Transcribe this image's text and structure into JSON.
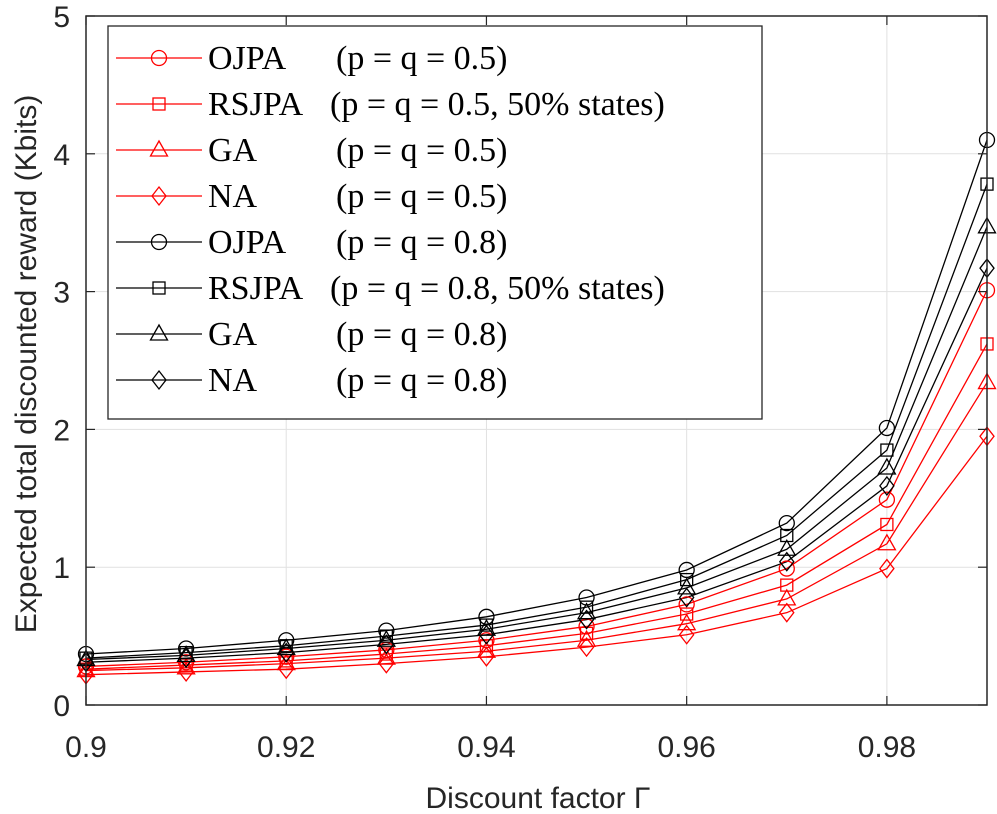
{
  "chart_data": {
    "type": "line",
    "title": "",
    "xlabel": "Discount factor Γ",
    "ylabel": "Expected total discounted reward (Kbits)",
    "xlim": [
      0.9,
      0.99
    ],
    "ylim": [
      0,
      5
    ],
    "grid": true,
    "legend_position": "top-left",
    "x": [
      0.9,
      0.91,
      0.92,
      0.93,
      0.94,
      0.95,
      0.96,
      0.97,
      0.98,
      0.99
    ],
    "x_tick_labels": [
      "0.9",
      "0.92",
      "0.94",
      "0.96",
      "0.98"
    ],
    "x_ticks": [
      0.9,
      0.92,
      0.94,
      0.96,
      0.98
    ],
    "y_tick_labels": [
      "0",
      "1",
      "2",
      "3",
      "4",
      "5"
    ],
    "y_ticks": [
      0,
      1,
      2,
      3,
      4,
      5
    ],
    "series": [
      {
        "name": "OJPA",
        "condition": "(p = q = 0.5)",
        "color": "#ff0000",
        "marker": "circle",
        "values": [
          0.28,
          0.31,
          0.35,
          0.4,
          0.47,
          0.57,
          0.73,
          0.99,
          1.49,
          3.01
        ]
      },
      {
        "name": "RSJPA",
        "condition": "(p = q = 0.5, 50% states)",
        "color": "#ff0000",
        "marker": "square",
        "values": [
          0.26,
          0.29,
          0.32,
          0.37,
          0.43,
          0.52,
          0.66,
          0.87,
          1.31,
          2.62
        ]
      },
      {
        "name": "GA",
        "condition": "(p = q = 0.5)",
        "color": "#ff0000",
        "marker": "triangle",
        "values": [
          0.25,
          0.27,
          0.3,
          0.34,
          0.39,
          0.47,
          0.59,
          0.77,
          1.17,
          2.34
        ]
      },
      {
        "name": "NA",
        "condition": "(p = q = 0.5)",
        "color": "#ff0000",
        "marker": "diamond",
        "values": [
          0.22,
          0.24,
          0.26,
          0.3,
          0.35,
          0.42,
          0.51,
          0.67,
          0.99,
          1.95
        ]
      },
      {
        "name": "OJPA",
        "condition": "(p = q = 0.8)",
        "color": "#000000",
        "marker": "circle",
        "values": [
          0.37,
          0.41,
          0.47,
          0.54,
          0.64,
          0.78,
          0.98,
          1.32,
          2.01,
          4.1
        ]
      },
      {
        "name": "RSJPA",
        "condition": "(p = q = 0.8, 50% states)",
        "color": "#000000",
        "marker": "square",
        "values": [
          0.34,
          0.38,
          0.43,
          0.5,
          0.58,
          0.71,
          0.91,
          1.23,
          1.85,
          3.78
        ]
      },
      {
        "name": "GA",
        "condition": "(p = q = 0.8)",
        "color": "#000000",
        "marker": "triangle",
        "values": [
          0.33,
          0.36,
          0.41,
          0.47,
          0.55,
          0.67,
          0.85,
          1.13,
          1.72,
          3.47
        ]
      },
      {
        "name": "NA",
        "condition": "(p = q = 0.8)",
        "color": "#000000",
        "marker": "diamond",
        "values": [
          0.31,
          0.34,
          0.38,
          0.44,
          0.51,
          0.62,
          0.78,
          1.04,
          1.59,
          3.17
        ]
      }
    ]
  }
}
